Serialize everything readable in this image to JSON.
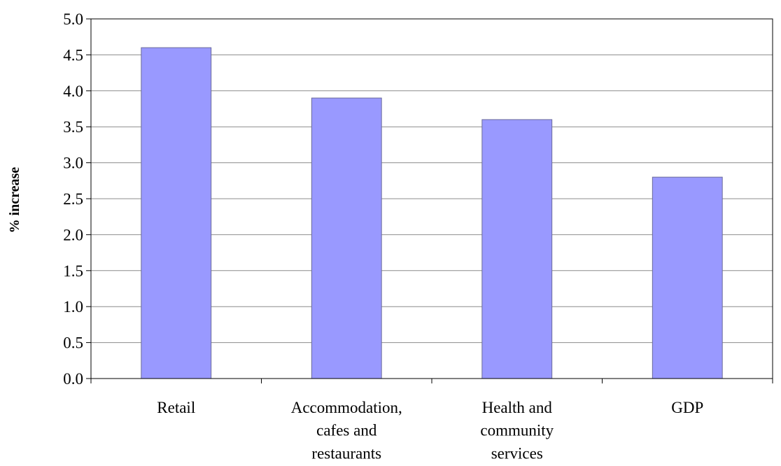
{
  "chart_data": {
    "type": "bar",
    "categories": [
      [
        "Retail"
      ],
      [
        "Accommodation,",
        "cafes and",
        "restaurants"
      ],
      [
        "Health and",
        "community",
        "services"
      ],
      [
        "GDP"
      ]
    ],
    "values": [
      4.6,
      3.9,
      3.6,
      2.8
    ],
    "title": "",
    "xlabel": "",
    "ylabel": "% increase",
    "ylim": [
      0,
      5
    ],
    "yticks": [
      "0.0",
      "0.5",
      "1.0",
      "1.5",
      "2.0",
      "2.5",
      "3.0",
      "3.5",
      "4.0",
      "4.5",
      "5.0"
    ],
    "grid": true,
    "legend": "none",
    "colors": {
      "bar": "#9999ff",
      "bar_stroke": "#6b6b99",
      "grid": "#8c8c8c",
      "axis": "#000000"
    }
  }
}
